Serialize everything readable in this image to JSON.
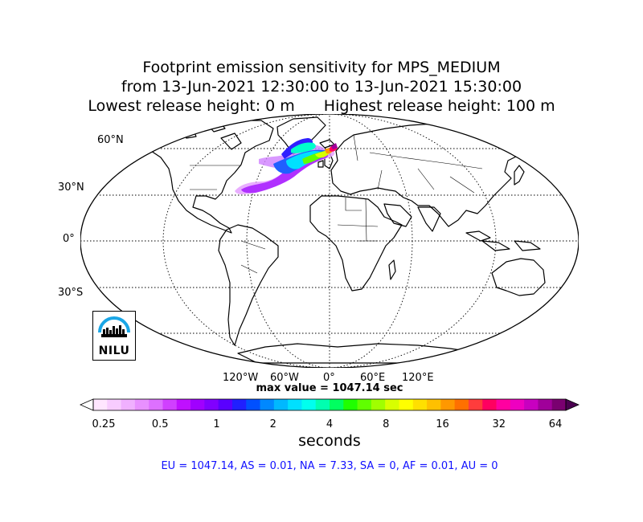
{
  "title": {
    "line1": "Footprint emission sensitivity for MPS_MEDIUM",
    "line2": "from 13-Jun-2021 12:30:00 to 13-Jun-2021 15:30:00",
    "lowest": "Lowest release height: 0 m",
    "highest": "Highest release height: 100 m"
  },
  "map": {
    "projection": "robinson",
    "lat_labels": [
      "60°N",
      "30°N",
      "0°",
      "30°S"
    ],
    "lon_labels": [
      "120°W",
      "60°W",
      "0°",
      "60°E",
      "120°E"
    ],
    "logo": {
      "text": "NILU"
    }
  },
  "max_value": "max value = 1047.14 sec",
  "colorbar": {
    "ticks": [
      "0.25",
      "0.5",
      "1",
      "2",
      "4",
      "8",
      "16",
      "32",
      "64"
    ],
    "label": "seconds",
    "colors": [
      "#ffe6ff",
      "#f8ccff",
      "#f0b0ff",
      "#e890ff",
      "#dd70ff",
      "#d040ff",
      "#bf10ff",
      "#a000ff",
      "#8000ff",
      "#5a00ff",
      "#2020ff",
      "#0050ff",
      "#0088ff",
      "#00b8ff",
      "#00e0ff",
      "#00ffee",
      "#00ffb0",
      "#00ff60",
      "#20ff00",
      "#60ff00",
      "#a0ff00",
      "#d8ff00",
      "#ffff00",
      "#ffe000",
      "#ffc000",
      "#ff9800",
      "#ff7000",
      "#ff3c3c",
      "#ff0060",
      "#ff00a0",
      "#ee00c0",
      "#c800c0",
      "#a0009a",
      "#7a0070"
    ]
  },
  "totals": "EU = 1047.14,  AS = 0.01,  NA = 7.33,  SA = 0,  AF = 0.01,  AU = 0"
}
